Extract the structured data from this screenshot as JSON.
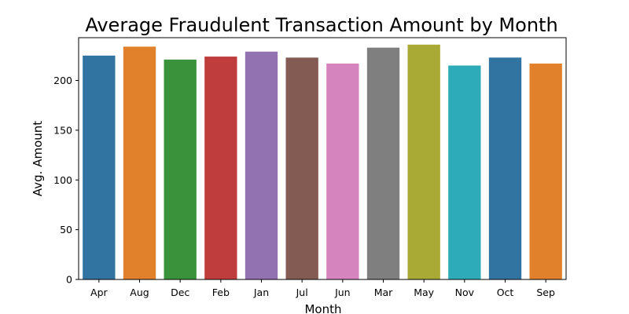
{
  "chart_data": {
    "type": "bar",
    "title": "Average Fraudulent Transaction Amount by Month",
    "xlabel": "Month",
    "ylabel": "Avg. Amount",
    "categories": [
      "Apr",
      "Aug",
      "Dec",
      "Feb",
      "Jan",
      "Jul",
      "Jun",
      "Mar",
      "May",
      "Nov",
      "Oct",
      "Sep"
    ],
    "values": [
      225,
      234,
      221,
      224,
      229,
      223,
      217,
      233,
      236,
      215,
      223,
      217
    ],
    "colors": [
      "#3274a1",
      "#e1812c",
      "#3a923a",
      "#c03d3e",
      "#9372b2",
      "#845b53",
      "#d684bd",
      "#7f7f7f",
      "#a9aa35",
      "#2eabb8",
      "#3274a1",
      "#e1812c"
    ],
    "ylim": [
      0,
      243
    ],
    "yticks": [
      0,
      50,
      100,
      150,
      200
    ],
    "grid": false,
    "legend": "none"
  }
}
